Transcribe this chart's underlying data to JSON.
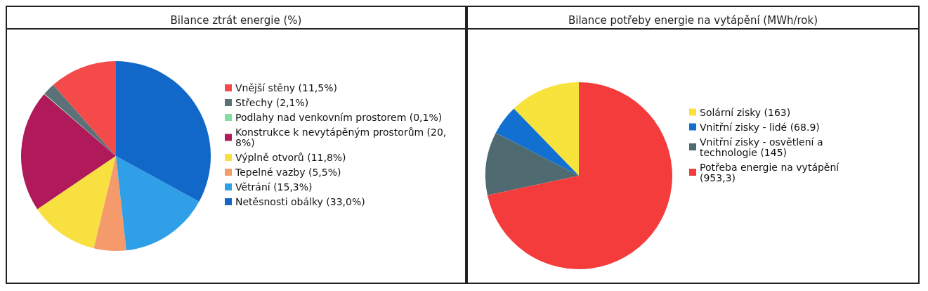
{
  "chart_data": [
    {
      "type": "pie",
      "title": "Bilance ztrát energie (%)",
      "legend": "right",
      "categories": [
        "Vnější stěny (11,5%)",
        "Střechy (2,1%)",
        "Podlahy nad venkovním prostorem (0,1%)",
        "Konstrukce k nevytápěným prostorům (20,8%)",
        "Výplně otvorů (11,8%)",
        "Tepelné vazby (5,5%)",
        "Větrání (15,3%)",
        "Netěsnosti obálky (33,0%)"
      ],
      "values": [
        11.5,
        2.1,
        0.1,
        20.8,
        11.8,
        5.5,
        15.3,
        33.0
      ],
      "colors": [
        "#f44a4a",
        "#5c7177",
        "#7fe0a0",
        "#b0195a",
        "#f7e040",
        "#f59a6a",
        "#2f9fe8",
        "#1268c8"
      ]
    },
    {
      "type": "pie",
      "title": "Bilance potřeby energie na vytápění (MWh/rok)",
      "legend": "right",
      "categories": [
        "Solární zisky (163)",
        "Vnitřní zisky - lidé (68.9)",
        "Vnitřní zisky - osvětlení a technologie (145)",
        "Potřeba energie na vytápění (953,3)"
      ],
      "values": [
        163,
        68.9,
        145,
        953.3
      ],
      "colors": [
        "#f7e33c",
        "#1170d0",
        "#4f6a70",
        "#f43c3c"
      ]
    }
  ]
}
